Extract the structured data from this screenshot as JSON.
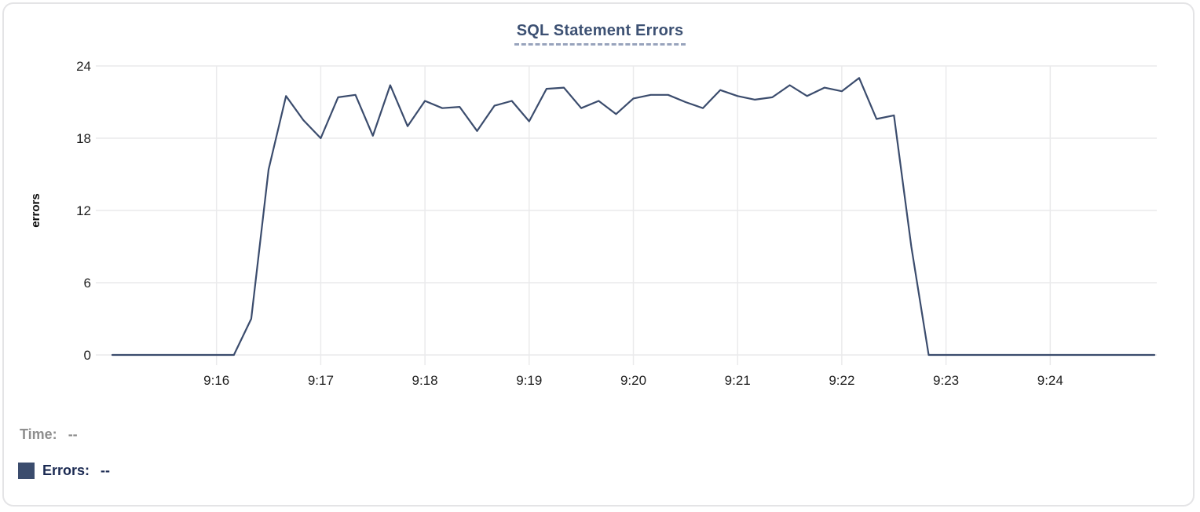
{
  "chart_data": {
    "type": "line",
    "title": "SQL Statement Errors",
    "xlabel": "",
    "ylabel": "errors",
    "ylim": [
      0,
      24
    ],
    "y_ticks": [
      0,
      6,
      12,
      18,
      24
    ],
    "x_ticks": [
      "9:16",
      "9:17",
      "9:18",
      "9:19",
      "9:20",
      "9:21",
      "9:22",
      "9:23",
      "9:24"
    ],
    "x_domain": [
      "9:15:00",
      "9:25:00"
    ],
    "grid": true,
    "legend_position": "none",
    "series": [
      {
        "name": "Errors",
        "color": "#3b4c6d",
        "x": [
          "9:15:00",
          "9:15:10",
          "9:15:20",
          "9:15:30",
          "9:15:40",
          "9:15:50",
          "9:16:00",
          "9:16:10",
          "9:16:20",
          "9:16:30",
          "9:16:40",
          "9:16:50",
          "9:17:00",
          "9:17:10",
          "9:17:20",
          "9:17:30",
          "9:17:40",
          "9:17:50",
          "9:18:00",
          "9:18:10",
          "9:18:20",
          "9:18:30",
          "9:18:40",
          "9:18:50",
          "9:19:00",
          "9:19:10",
          "9:19:20",
          "9:19:30",
          "9:19:40",
          "9:19:50",
          "9:20:00",
          "9:20:10",
          "9:20:20",
          "9:20:30",
          "9:20:40",
          "9:20:50",
          "9:21:00",
          "9:21:10",
          "9:21:20",
          "9:21:30",
          "9:21:40",
          "9:21:50",
          "9:22:00",
          "9:22:10",
          "9:22:20",
          "9:22:30",
          "9:22:40",
          "9:22:50",
          "9:23:00",
          "9:23:10",
          "9:23:20",
          "9:23:30",
          "9:23:40",
          "9:23:50",
          "9:24:00",
          "9:24:10",
          "9:24:20",
          "9:24:30",
          "9:24:40",
          "9:24:50",
          "9:25:00"
        ],
        "values": [
          0,
          0,
          0,
          0,
          0,
          0,
          0,
          0,
          3,
          15.4,
          21.5,
          19.5,
          18,
          21.4,
          21.6,
          18.2,
          22.4,
          19,
          21.1,
          20.5,
          20.6,
          18.6,
          20.7,
          21.1,
          19.4,
          22.1,
          22.2,
          20.5,
          21.1,
          20,
          21.3,
          21.6,
          21.6,
          21,
          20.5,
          22,
          21.5,
          21.2,
          21.4,
          22.4,
          21.5,
          22.2,
          21.9,
          23,
          19.6,
          19.9,
          9,
          0,
          0,
          0,
          0,
          0,
          0,
          0,
          0,
          0,
          0,
          0,
          0,
          0,
          0
        ]
      }
    ]
  },
  "tooltip": {
    "time_label": "Time:",
    "time_value": "--",
    "errors_label": "Errors:",
    "errors_value": "--"
  },
  "colors": {
    "title": "#3d5173",
    "title_underline": "#98a3bc",
    "series_line": "#3b4c6d",
    "gridline": "#eaeaec",
    "axis_text": "#1f1f1f",
    "time_text": "#8e8e8e",
    "errors_text": "#1b2a52"
  }
}
